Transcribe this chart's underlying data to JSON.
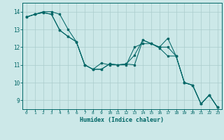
{
  "xlabel": "Humidex (Indice chaleur)",
  "bg_color": "#cce8e8",
  "line_color": "#006666",
  "grid_color": "#aacccc",
  "xlim": [
    -0.5,
    23.5
  ],
  "ylim": [
    8.5,
    14.5
  ],
  "yticks": [
    9,
    10,
    11,
    12,
    13,
    14
  ],
  "xticks": [
    0,
    1,
    2,
    3,
    4,
    5,
    6,
    7,
    8,
    9,
    10,
    11,
    12,
    13,
    14,
    15,
    16,
    17,
    18,
    19,
    20,
    21,
    22,
    23
  ],
  "line1_x": [
    0,
    1,
    2,
    3,
    4,
    5,
    6,
    7,
    8,
    9,
    10,
    11,
    12,
    13,
    14,
    15,
    16,
    17,
    18,
    19,
    20,
    21,
    22,
    23
  ],
  "line1_y": [
    13.7,
    13.85,
    13.95,
    13.85,
    12.95,
    12.6,
    12.3,
    11.0,
    10.75,
    10.75,
    11.05,
    11.0,
    11.05,
    11.0,
    12.4,
    12.2,
    12.0,
    12.5,
    11.5,
    10.0,
    9.85,
    8.8,
    9.3,
    8.6
  ],
  "line2_x": [
    0,
    1,
    2,
    3,
    4,
    5,
    6,
    7,
    8,
    9,
    10,
    11,
    12,
    13,
    14,
    15,
    16,
    17,
    18,
    19,
    20,
    21,
    22,
    23
  ],
  "line2_y": [
    13.7,
    13.85,
    13.95,
    13.85,
    12.95,
    12.6,
    12.3,
    11.0,
    10.75,
    11.1,
    11.0,
    11.0,
    11.0,
    12.0,
    12.2,
    12.2,
    12.0,
    12.0,
    11.5,
    10.0,
    9.85,
    8.8,
    9.3,
    8.6
  ],
  "line3_x": [
    0,
    1,
    2,
    3,
    4,
    5,
    6,
    7,
    8,
    9,
    10,
    11,
    12,
    13,
    14,
    15,
    16,
    17,
    18,
    19,
    20,
    21,
    22,
    23
  ],
  "line3_y": [
    13.7,
    13.85,
    14.0,
    14.0,
    13.85,
    13.0,
    12.3,
    11.0,
    10.75,
    10.75,
    11.05,
    11.0,
    11.05,
    11.55,
    12.4,
    12.2,
    11.95,
    11.5,
    11.5,
    10.0,
    9.85,
    8.8,
    9.3,
    8.6
  ]
}
